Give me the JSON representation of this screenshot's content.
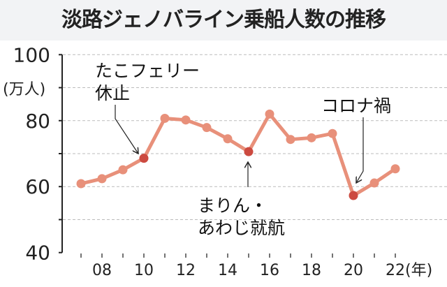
{
  "chart_data": {
    "type": "line",
    "title": "淡路ジェノバライン乗船人数の推移",
    "ylabel": "(万人)",
    "xlabel": "(年)",
    "ylim": [
      40,
      100
    ],
    "yticks": [
      "40",
      "60",
      "80",
      "100"
    ],
    "grid": true,
    "x": [
      2007,
      2008,
      2009,
      2010,
      2011,
      2012,
      2013,
      2014,
      2015,
      2016,
      2017,
      2018,
      2019,
      2020,
      2021,
      2022
    ],
    "xtick_labels": [
      {
        "year": 2008,
        "label": "08"
      },
      {
        "year": 2010,
        "label": "10"
      },
      {
        "year": 2012,
        "label": "12"
      },
      {
        "year": 2014,
        "label": "14"
      },
      {
        "year": 2016,
        "label": "16"
      },
      {
        "year": 2018,
        "label": "18"
      },
      {
        "year": 2020,
        "label": "20"
      },
      {
        "year": 2022,
        "label": "22"
      }
    ],
    "series": [
      {
        "name": "乗船人数",
        "values": [
          60.9,
          62.4,
          65.1,
          68.6,
          80.7,
          80.2,
          77.9,
          74.5,
          70.6,
          82.0,
          74.3,
          74.8,
          76.1,
          57.3,
          61.1,
          65.4
        ],
        "color": "#e8907a"
      }
    ],
    "highlight_color": "#cc4a40",
    "annotations": [
      {
        "year": 2010,
        "lines": [
          "たこフェリー",
          "休止"
        ]
      },
      {
        "year": 2015,
        "lines": [
          "まりん・",
          "あわじ就航"
        ]
      },
      {
        "year": 2020,
        "lines": [
          "コロナ禍"
        ]
      }
    ]
  }
}
